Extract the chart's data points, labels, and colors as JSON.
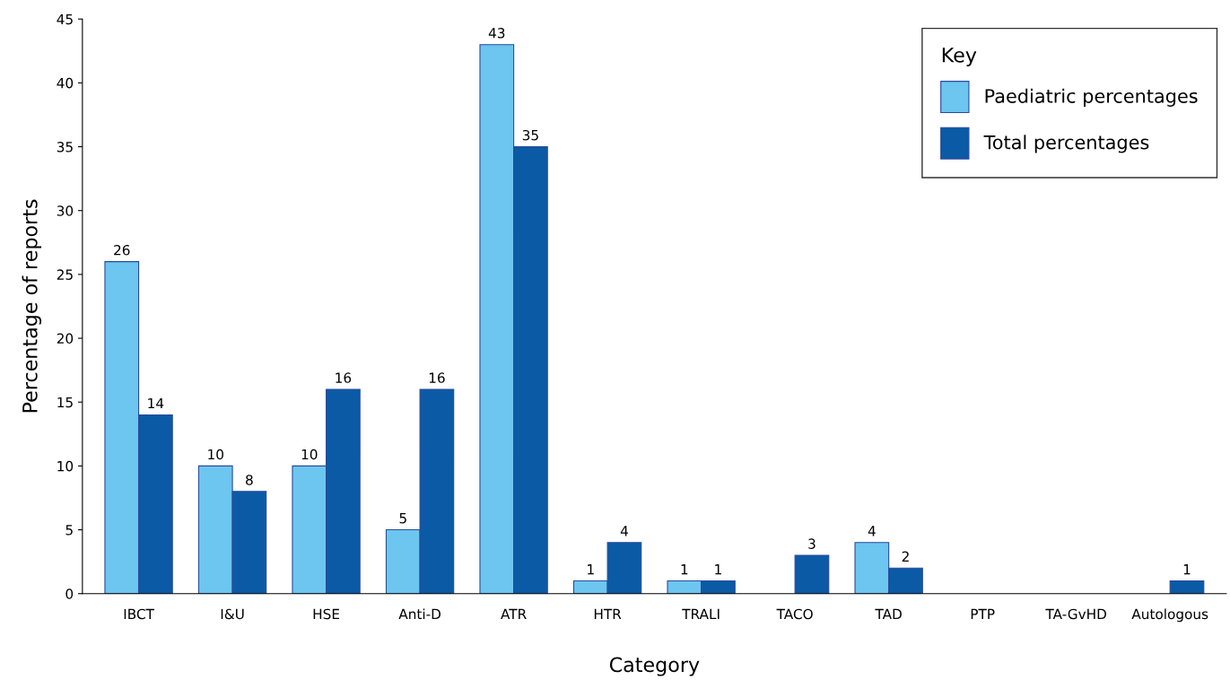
{
  "chart_data": {
    "type": "bar",
    "xlabel": "Category",
    "ylabel": "Percentage of reports",
    "categories": [
      "IBCT",
      "I&U",
      "HSE",
      "Anti-D",
      "ATR",
      "HTR",
      "TRALI",
      "TACO",
      "TAD",
      "PTP",
      "TA-GvHD",
      "Autologous"
    ],
    "series": [
      {
        "name": "Paediatric percentages",
        "color": "#6cc6ef",
        "values": [
          26,
          10,
          10,
          5,
          43,
          1,
          1,
          null,
          4,
          null,
          null,
          null
        ]
      },
      {
        "name": "Total percentages",
        "color": "#0b5aa6",
        "values": [
          14,
          8,
          16,
          16,
          35,
          4,
          1,
          3,
          2,
          null,
          null,
          1
        ]
      }
    ],
    "ylim": [
      0,
      45
    ],
    "yticks": [
      0,
      5,
      10,
      15,
      20,
      25,
      30,
      35,
      40,
      45
    ],
    "data_labels": true,
    "legend": "top right",
    "legend_title": "Key",
    "grid": false
  }
}
